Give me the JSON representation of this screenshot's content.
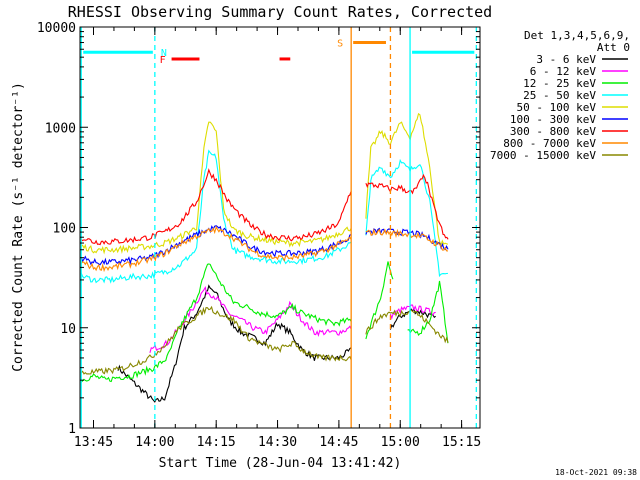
{
  "chart_data": {
    "type": "line",
    "title": "RHESSI Observing Summary Count Rates, Corrected",
    "xlabel": "Start Time (28-Jun-04 13:41:42)",
    "ylabel": "Corrected Count Rate (s⁻¹ detector⁻¹)",
    "yscale": "log",
    "ylim": [
      1,
      10000
    ],
    "xlim": [
      "13:41:42",
      "15:19:30"
    ],
    "x_ticks": [
      "13:45",
      "14:00",
      "14:15",
      "14:30",
      "14:45",
      "15:00",
      "15:15"
    ],
    "y_ticks": [
      "1",
      "10",
      "100",
      "1000",
      "10000"
    ],
    "legend": {
      "position": "right",
      "header": [
        "Det 1,3,4,5,6,9,",
        "Att 0"
      ],
      "entries": [
        {
          "label": "3 - 6 keV",
          "color": "#000000"
        },
        {
          "label": "6 - 12 keV",
          "color": "#ff00ff"
        },
        {
          "label": "12 - 25 keV",
          "color": "#00ee00"
        },
        {
          "label": "25 - 50 keV",
          "color": "#00ffff"
        },
        {
          "label": "50 - 100 keV",
          "color": "#dddd00"
        },
        {
          "label": "100 - 300 keV",
          "color": "#0000ff"
        },
        {
          "label": "300 - 800 keV",
          "color": "#ff0000"
        },
        {
          "label": "800 - 7000 keV",
          "color": "#ff8800"
        },
        {
          "label": "7000 - 15000 keV",
          "color": "#888800"
        }
      ]
    },
    "series": [
      {
        "name": "3 - 6 keV",
        "color": "#000000",
        "gaps": [
          [
            14.8,
            14.96
          ]
        ],
        "points": [
          [
            13.85,
            4
          ],
          [
            14.0,
            1.8
          ],
          [
            14.04,
            2
          ],
          [
            14.08,
            4
          ],
          [
            14.12,
            10
          ],
          [
            14.17,
            14
          ],
          [
            14.22,
            25
          ],
          [
            14.25,
            22
          ],
          [
            14.3,
            12
          ],
          [
            14.35,
            9
          ],
          [
            14.4,
            8
          ],
          [
            14.45,
            7
          ],
          [
            14.5,
            11
          ],
          [
            14.55,
            9
          ],
          [
            14.6,
            6
          ],
          [
            14.65,
            5
          ],
          [
            14.7,
            5
          ],
          [
            14.75,
            5
          ],
          [
            14.8,
            6
          ],
          [
            14.96,
            10
          ],
          [
            15.0,
            13
          ],
          [
            15.05,
            15
          ],
          [
            15.1,
            14
          ],
          [
            15.15,
            12
          ]
        ]
      },
      {
        "name": "6 - 12 keV",
        "color": "#ff00ff",
        "gaps": [
          [
            14.8,
            14.96
          ]
        ],
        "points": [
          [
            13.98,
            6
          ],
          [
            14.05,
            7
          ],
          [
            14.1,
            10
          ],
          [
            14.15,
            15
          ],
          [
            14.2,
            24
          ],
          [
            14.25,
            20
          ],
          [
            14.3,
            14
          ],
          [
            14.35,
            12
          ],
          [
            14.4,
            10
          ],
          [
            14.45,
            9
          ],
          [
            14.5,
            12
          ],
          [
            14.55,
            17
          ],
          [
            14.6,
            12
          ],
          [
            14.65,
            9
          ],
          [
            14.7,
            9
          ],
          [
            14.75,
            9
          ],
          [
            14.8,
            10
          ],
          [
            14.96,
            13
          ],
          [
            15.0,
            15
          ],
          [
            15.05,
            16
          ],
          [
            15.1,
            15
          ],
          [
            15.15,
            14
          ]
        ]
      },
      {
        "name": "12 - 25 keV",
        "color": "#00ee00",
        "gaps": [
          [
            14.8,
            14.86
          ],
          [
            14.97,
            15.03
          ]
        ],
        "points": [
          [
            13.7,
            3
          ],
          [
            13.75,
            3.3
          ],
          [
            13.8,
            3
          ],
          [
            13.85,
            3.2
          ],
          [
            13.9,
            3.3
          ],
          [
            14.0,
            4
          ],
          [
            14.05,
            5
          ],
          [
            14.1,
            10
          ],
          [
            14.17,
            20
          ],
          [
            14.22,
            45
          ],
          [
            14.26,
            30
          ],
          [
            14.32,
            18
          ],
          [
            14.38,
            16
          ],
          [
            14.43,
            14
          ],
          [
            14.5,
            13
          ],
          [
            14.56,
            16
          ],
          [
            14.6,
            14
          ],
          [
            14.67,
            12
          ],
          [
            14.73,
            11
          ],
          [
            14.8,
            12
          ],
          [
            14.86,
            8
          ],
          [
            14.92,
            20
          ],
          [
            14.95,
            45
          ],
          [
            14.97,
            30
          ],
          [
            15.03,
            9
          ],
          [
            15.08,
            9
          ],
          [
            15.12,
            12
          ],
          [
            15.16,
            28
          ],
          [
            15.2,
            6
          ]
        ]
      },
      {
        "name": "25 - 50 keV",
        "color": "#00ffff",
        "gaps": [
          [
            14.8,
            14.86
          ]
        ],
        "points": [
          [
            13.7,
            33
          ],
          [
            13.75,
            30
          ],
          [
            13.82,
            30
          ],
          [
            13.9,
            32
          ],
          [
            13.98,
            33
          ],
          [
            14.04,
            36
          ],
          [
            14.1,
            42
          ],
          [
            14.17,
            60
          ],
          [
            14.2,
            300
          ],
          [
            14.22,
            550
          ],
          [
            14.25,
            500
          ],
          [
            14.28,
            120
          ],
          [
            14.32,
            60
          ],
          [
            14.38,
            52
          ],
          [
            14.45,
            48
          ],
          [
            14.5,
            46
          ],
          [
            14.55,
            46
          ],
          [
            14.6,
            47
          ],
          [
            14.65,
            49
          ],
          [
            14.7,
            52
          ],
          [
            14.75,
            60
          ],
          [
            14.8,
            70
          ],
          [
            14.86,
            80
          ],
          [
            14.88,
            300
          ],
          [
            14.92,
            400
          ],
          [
            14.96,
            320
          ],
          [
            15.0,
            450
          ],
          [
            15.04,
            370
          ],
          [
            15.08,
            450
          ],
          [
            15.12,
            180
          ],
          [
            15.16,
            35
          ],
          [
            15.2,
            34
          ]
        ]
      },
      {
        "name": "50 - 100 keV",
        "color": "#dddd00",
        "gaps": [
          [
            14.8,
            14.86
          ]
        ],
        "points": [
          [
            13.7,
            65
          ],
          [
            13.75,
            60
          ],
          [
            13.82,
            60
          ],
          [
            13.9,
            62
          ],
          [
            13.98,
            65
          ],
          [
            14.04,
            70
          ],
          [
            14.1,
            80
          ],
          [
            14.17,
            100
          ],
          [
            14.2,
            600
          ],
          [
            14.22,
            1150
          ],
          [
            14.25,
            900
          ],
          [
            14.28,
            150
          ],
          [
            14.32,
            95
          ],
          [
            14.38,
            82
          ],
          [
            14.45,
            75
          ],
          [
            14.5,
            72
          ],
          [
            14.55,
            70
          ],
          [
            14.6,
            71
          ],
          [
            14.65,
            73
          ],
          [
            14.7,
            78
          ],
          [
            14.75,
            88
          ],
          [
            14.8,
            100
          ],
          [
            14.86,
            130
          ],
          [
            14.88,
            600
          ],
          [
            14.92,
            900
          ],
          [
            14.96,
            700
          ],
          [
            15.0,
            1100
          ],
          [
            15.04,
            800
          ],
          [
            15.08,
            1400
          ],
          [
            15.12,
            400
          ],
          [
            15.16,
            70
          ],
          [
            15.2,
            68
          ]
        ]
      },
      {
        "name": "100 - 300 keV",
        "color": "#0000ff",
        "gaps": [
          [
            14.8,
            14.86
          ]
        ],
        "points": [
          [
            13.7,
            50
          ],
          [
            13.75,
            45
          ],
          [
            13.82,
            45
          ],
          [
            13.9,
            47
          ],
          [
            13.98,
            50
          ],
          [
            14.04,
            58
          ],
          [
            14.1,
            70
          ],
          [
            14.17,
            85
          ],
          [
            14.22,
            95
          ],
          [
            14.25,
            100
          ],
          [
            14.3,
            90
          ],
          [
            14.35,
            75
          ],
          [
            14.4,
            62
          ],
          [
            14.45,
            57
          ],
          [
            14.5,
            55
          ],
          [
            14.55,
            55
          ],
          [
            14.6,
            56
          ],
          [
            14.65,
            58
          ],
          [
            14.7,
            62
          ],
          [
            14.75,
            70
          ],
          [
            14.8,
            80
          ],
          [
            14.86,
            90
          ],
          [
            14.92,
            92
          ],
          [
            15.0,
            90
          ],
          [
            15.05,
            88
          ],
          [
            15.1,
            82
          ],
          [
            15.15,
            70
          ],
          [
            15.2,
            60
          ]
        ]
      },
      {
        "name": "300 - 800 keV",
        "color": "#ff0000",
        "gaps": [
          [
            14.8,
            14.86
          ]
        ],
        "points": [
          [
            13.7,
            80
          ],
          [
            13.75,
            72
          ],
          [
            13.82,
            72
          ],
          [
            13.9,
            75
          ],
          [
            13.98,
            80
          ],
          [
            14.04,
            90
          ],
          [
            14.1,
            110
          ],
          [
            14.17,
            180
          ],
          [
            14.22,
            360
          ],
          [
            14.25,
            300
          ],
          [
            14.3,
            180
          ],
          [
            14.35,
            130
          ],
          [
            14.4,
            100
          ],
          [
            14.45,
            85
          ],
          [
            14.5,
            80
          ],
          [
            14.55,
            78
          ],
          [
            14.6,
            80
          ],
          [
            14.65,
            85
          ],
          [
            14.7,
            95
          ],
          [
            14.75,
            110
          ],
          [
            14.8,
            240
          ],
          [
            14.86,
            270
          ],
          [
            14.92,
            260
          ],
          [
            14.96,
            240
          ],
          [
            15.0,
            250
          ],
          [
            15.05,
            220
          ],
          [
            15.1,
            330
          ],
          [
            15.14,
            150
          ],
          [
            15.18,
            80
          ],
          [
            15.2,
            75
          ]
        ]
      },
      {
        "name": "800 - 7000 keV",
        "color": "#ff8800",
        "gaps": [
          [
            14.8,
            14.86
          ]
        ],
        "points": [
          [
            13.7,
            45
          ],
          [
            13.75,
            40
          ],
          [
            13.82,
            40
          ],
          [
            13.9,
            43
          ],
          [
            13.98,
            48
          ],
          [
            14.04,
            55
          ],
          [
            14.1,
            68
          ],
          [
            14.17,
            82
          ],
          [
            14.22,
            92
          ],
          [
            14.25,
            95
          ],
          [
            14.3,
            85
          ],
          [
            14.35,
            70
          ],
          [
            14.4,
            58
          ],
          [
            14.45,
            52
          ],
          [
            14.5,
            50
          ],
          [
            14.55,
            50
          ],
          [
            14.6,
            52
          ],
          [
            14.65,
            55
          ],
          [
            14.7,
            60
          ],
          [
            14.75,
            68
          ],
          [
            14.8,
            78
          ],
          [
            14.86,
            88
          ],
          [
            14.92,
            90
          ],
          [
            15.0,
            87
          ],
          [
            15.05,
            85
          ],
          [
            15.1,
            80
          ],
          [
            15.15,
            68
          ],
          [
            15.2,
            58
          ]
        ]
      },
      {
        "name": "7000 - 15000 keV",
        "color": "#888800",
        "gaps": [
          [
            14.8,
            14.86
          ]
        ],
        "points": [
          [
            13.7,
            3.5
          ],
          [
            13.75,
            3.6
          ],
          [
            13.8,
            3.7
          ],
          [
            13.85,
            3.8
          ],
          [
            13.9,
            4.2
          ],
          [
            13.98,
            5
          ],
          [
            14.05,
            7
          ],
          [
            14.1,
            10
          ],
          [
            14.17,
            13
          ],
          [
            14.22,
            16
          ],
          [
            14.26,
            14
          ],
          [
            14.32,
            12
          ],
          [
            14.38,
            8
          ],
          [
            14.43,
            7
          ],
          [
            14.5,
            6
          ],
          [
            14.56,
            7
          ],
          [
            14.6,
            6
          ],
          [
            14.67,
            5
          ],
          [
            14.73,
            5
          ],
          [
            14.8,
            5
          ],
          [
            14.86,
            9
          ],
          [
            14.92,
            13
          ],
          [
            14.96,
            14
          ],
          [
            15.0,
            14
          ],
          [
            15.05,
            15
          ],
          [
            15.1,
            12
          ],
          [
            15.15,
            9
          ],
          [
            15.2,
            7
          ]
        ]
      }
    ],
    "annotations": [
      {
        "type": "bar",
        "label": "N",
        "color": "#00ffff",
        "y": 5600,
        "segments": [
          [
            13.7,
            14.0
          ],
          [
            15.04,
            15.31
          ]
        ]
      },
      {
        "type": "bar",
        "label": "F",
        "color": "#ff0000",
        "y": 4800,
        "segments": [
          [
            14.06,
            14.19
          ],
          [
            14.5,
            14.56
          ]
        ]
      },
      {
        "type": "bar",
        "label": "S",
        "color": "#ff8800",
        "y": 7000,
        "segments": [
          [
            14.8,
            14.95
          ]
        ]
      },
      {
        "type": "vline",
        "color": "#00ffff",
        "style": "solid",
        "x": 13.7
      },
      {
        "type": "vline",
        "color": "#00ffff",
        "style": "dashed",
        "x": 14.0
      },
      {
        "type": "vline",
        "color": "#00ffff",
        "style": "solid",
        "x": 15.04
      },
      {
        "type": "vline",
        "color": "#00ffff",
        "style": "dashed",
        "x": 15.31
      },
      {
        "type": "vline",
        "color": "#ff8800",
        "style": "solid",
        "x": 14.8
      },
      {
        "type": "vline",
        "color": "#ff8800",
        "style": "dashed",
        "x": 14.96
      }
    ],
    "timestamp": "18-Oct-2021 09:38",
    "grid": false
  }
}
